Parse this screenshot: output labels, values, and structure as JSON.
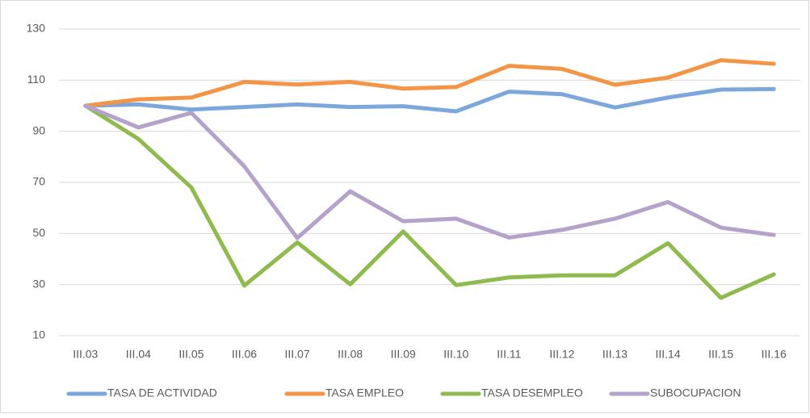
{
  "chart_data": {
    "type": "line",
    "categories": [
      "III.03",
      "III.04",
      "III.05",
      "III.06",
      "III.07",
      "III.08",
      "III.09",
      "III.10",
      "III.11",
      "III.12",
      "III.13",
      "III.14",
      "III.15",
      "III.16"
    ],
    "series": [
      {
        "name": "TASA DE ACTIVIDAD",
        "color": "#7ba7dc",
        "values": [
          100,
          100.5,
          98.5,
          99.5,
          100.5,
          99.5,
          99.8,
          97.8,
          105.5,
          104.5,
          99.3,
          103.2,
          106.3,
          106.5
        ]
      },
      {
        "name": "TASA EMPLEO",
        "color": "#f39546",
        "values": [
          100,
          102.5,
          103.2,
          109.3,
          108.3,
          109.3,
          106.7,
          107.3,
          115.6,
          114.4,
          108.2,
          111,
          117.8,
          116.4
        ]
      },
      {
        "name": "TASA DESEMPLEO",
        "color": "#8fba4d",
        "values": [
          100,
          87,
          68,
          29.6,
          46.5,
          30.1,
          50.8,
          29.8,
          32.8,
          33.6,
          33.6,
          46.2,
          24.8,
          34
        ]
      },
      {
        "name": "SUBOCUPACION",
        "color": "#b4a2ca",
        "values": [
          100,
          91.5,
          97.2,
          76.3,
          48.2,
          66.5,
          54.8,
          55.8,
          48.4,
          51.4,
          55.8,
          62.3,
          52.3,
          49.4
        ]
      }
    ],
    "ylim": [
      10,
      130
    ],
    "yticks": [
      10,
      30,
      50,
      70,
      90,
      110,
      130
    ],
    "grid": true,
    "legend": "bottom"
  }
}
